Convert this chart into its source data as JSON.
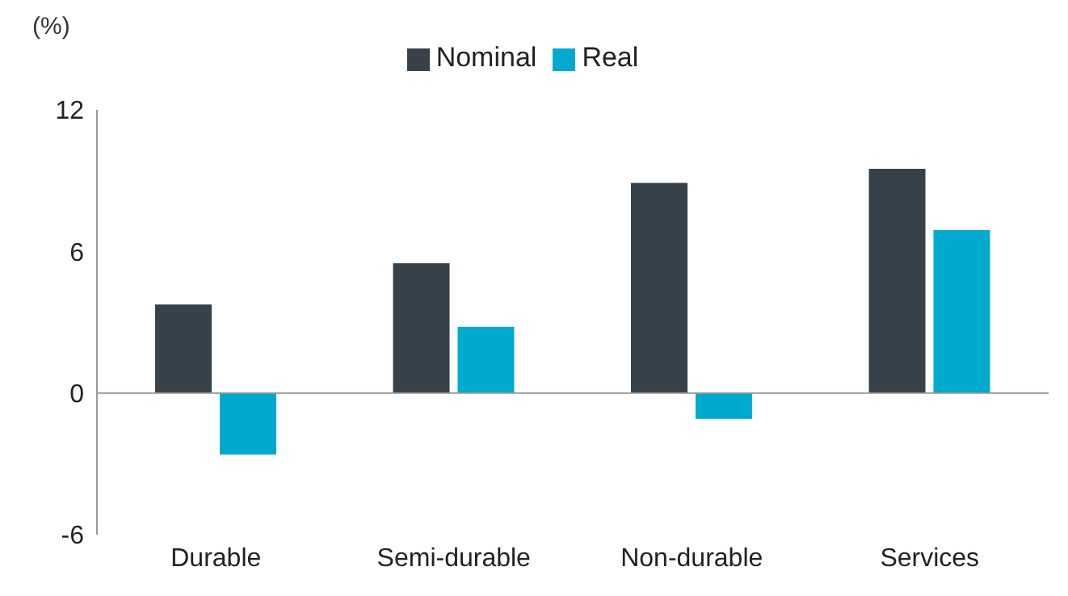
{
  "chart_data": {
    "type": "bar",
    "ylabel": "(%)",
    "categories": [
      "Durable",
      "Semi-durable",
      "Non-durable",
      "Services"
    ],
    "series": [
      {
        "name": "Nominal",
        "color": "#36414a",
        "values": [
          3.75,
          5.5,
          8.9,
          9.5
        ]
      },
      {
        "name": "Real",
        "color": "#00a9ce",
        "values": [
          -2.6,
          2.8,
          -1.1,
          6.9
        ]
      }
    ],
    "ylim": [
      -6,
      12
    ],
    "yticks": [
      -6,
      0,
      6,
      12
    ],
    "legend": "top"
  }
}
